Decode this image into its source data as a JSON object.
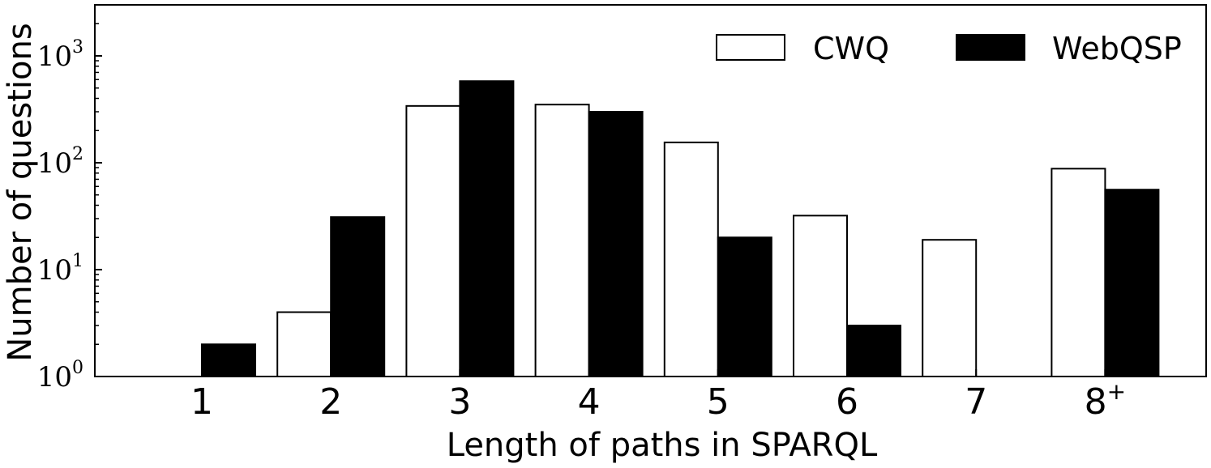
{
  "chart_data": {
    "type": "bar",
    "title": "",
    "xlabel": "Length of paths in SPARQL",
    "ylabel": "Number of questions",
    "yscale": "log",
    "ylim": [
      1,
      3000
    ],
    "yticks": [
      {
        "value": 1,
        "base": "10",
        "exp": "0"
      },
      {
        "value": 10,
        "base": "10",
        "exp": "1"
      },
      {
        "value": 100,
        "base": "10",
        "exp": "2"
      },
      {
        "value": 1000,
        "base": "10",
        "exp": "3"
      }
    ],
    "categories": [
      {
        "base": "1",
        "sup": ""
      },
      {
        "base": "2",
        "sup": ""
      },
      {
        "base": "3",
        "sup": ""
      },
      {
        "base": "4",
        "sup": ""
      },
      {
        "base": "5",
        "sup": ""
      },
      {
        "base": "6",
        "sup": ""
      },
      {
        "base": "7",
        "sup": ""
      },
      {
        "base": "8",
        "sup": "+"
      }
    ],
    "series": [
      {
        "name": "CWQ",
        "fill": "#ffffff",
        "stroke": "#000000",
        "values": [
          null,
          4,
          340,
          350,
          155,
          32,
          19,
          88
        ]
      },
      {
        "name": "WebQSP",
        "fill": "#000000",
        "stroke": "#000000",
        "values": [
          2,
          31,
          580,
          300,
          20,
          3,
          null,
          56
        ]
      }
    ],
    "legend": {
      "position": "top-right"
    },
    "grid": false
  }
}
